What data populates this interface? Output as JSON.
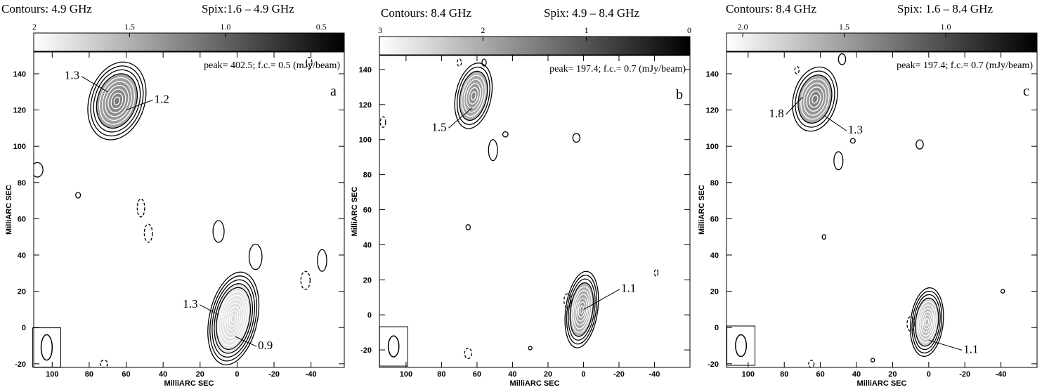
{
  "colors": {
    "background": "#ffffff",
    "ink": "#000000",
    "contour_inner": "#ffffff"
  },
  "chart_data": [
    {
      "type": "contour",
      "panel_letter": "a",
      "title_left": "Contours: 4.9 GHz",
      "title_right": "Spix:1.6 – 4.9 GHz",
      "colorbar": {
        "ticks": [
          "2",
          "1.5",
          "1.0",
          "0.5"
        ],
        "tick_values": [
          2.0,
          1.5,
          1.0,
          0.5
        ],
        "range": [
          2.0,
          0.38
        ]
      },
      "peak_note": "peak= 402.5; f.c.= 0.5 (mJy/beam)",
      "xlabel": "MilliARC SEC",
      "ylabel": "MilliARC SEC",
      "xticks": [
        "100",
        "80",
        "60",
        "40",
        "20",
        "0",
        "-20",
        "-40"
      ],
      "yticks": [
        "-20",
        "0",
        "20",
        "40",
        "60",
        "80",
        "100",
        "120",
        "140"
      ],
      "xlim": [
        110,
        -58
      ],
      "ylim": [
        -22,
        152
      ],
      "components": [
        {
          "x": 65,
          "y": 125,
          "rx": 15,
          "ry": 22,
          "rot": 18,
          "levels": 10,
          "shade": 0.55
        },
        {
          "x": 2,
          "y": 5,
          "rx": 13,
          "ry": 26,
          "rot": 12,
          "levels": 12,
          "shade": 0.15
        }
      ],
      "small_contours": [
        {
          "x": 10,
          "y": 53,
          "rx": 3,
          "ry": 6,
          "dashed": false
        },
        {
          "x": -10,
          "y": 39,
          "rx": 3.5,
          "ry": 7,
          "dashed": false
        },
        {
          "x": -46,
          "y": 37,
          "rx": 2.5,
          "ry": 6,
          "dashed": false
        },
        {
          "x": -37,
          "y": 26,
          "rx": 2.5,
          "ry": 5,
          "dashed": true
        },
        {
          "x": 52,
          "y": 66,
          "rx": 2,
          "ry": 5,
          "dashed": true
        },
        {
          "x": 48,
          "y": 52,
          "rx": 2.2,
          "ry": 5,
          "dashed": true
        },
        {
          "x": 86,
          "y": 73,
          "rx": 1.3,
          "ry": 1.6,
          "dashed": false
        },
        {
          "x": 108,
          "y": 87,
          "rx": 3,
          "ry": 4,
          "dashed": false
        },
        {
          "x": -39,
          "y": 146,
          "rx": 1.5,
          "ry": 3,
          "dashed": true
        },
        {
          "x": 72,
          "y": -20,
          "rx": 2,
          "ry": 2,
          "dashed": true
        }
      ],
      "labels": [
        {
          "text": "1.3",
          "x": 88,
          "y": 137,
          "to_x": 70,
          "to_y": 130
        },
        {
          "text": "1.2",
          "x": 44,
          "y": 124,
          "to_x": 60,
          "to_y": 120
        },
        {
          "text": "1.3",
          "x": 24,
          "y": 11,
          "to_x": 10,
          "to_y": 7
        },
        {
          "text": "0.9",
          "x": -12,
          "y": -12,
          "to_x": 1,
          "to_y": -5
        }
      ],
      "beam": {
        "x": 103,
        "y": -11,
        "rx": 3,
        "ry": 7
      }
    },
    {
      "type": "contour",
      "panel_letter": "b",
      "title_left": "Contours: 8.4 GHz",
      "title_right": "Spix: 4.9 – 8.4 GHz",
      "colorbar": {
        "ticks": [
          "3",
          "2",
          "1",
          "0"
        ],
        "tick_values": [
          3,
          2,
          1,
          0
        ],
        "range": [
          3.0,
          0.0
        ]
      },
      "peak_note": "peak= 197.4; f.c.= 0.7 (mJy/beam)",
      "xlabel": "MilliARC SEC",
      "ylabel": "MilliARC SEC",
      "xticks": [
        "100",
        "80",
        "60",
        "40",
        "20",
        "0",
        "-20",
        "-40"
      ],
      "yticks": [
        "-20",
        "0",
        "20",
        "40",
        "60",
        "80",
        "100",
        "120",
        "140"
      ],
      "xlim": [
        115,
        -60
      ],
      "ylim": [
        -30,
        148
      ],
      "components": [
        {
          "x": 62,
          "y": 125,
          "rx": 10,
          "ry": 19,
          "rot": 12,
          "levels": 8,
          "shade": 0.5
        },
        {
          "x": 1,
          "y": 3,
          "rx": 9,
          "ry": 22,
          "rot": 8,
          "levels": 10,
          "shade": 0.45
        }
      ],
      "small_contours": [
        {
          "x": 51,
          "y": 94,
          "rx": 2.5,
          "ry": 6,
          "dashed": false
        },
        {
          "x": 44,
          "y": 103,
          "rx": 1.5,
          "ry": 1.5,
          "dashed": false
        },
        {
          "x": 4,
          "y": 101,
          "rx": 2,
          "ry": 2.5,
          "dashed": false
        },
        {
          "x": 70,
          "y": 144,
          "rx": 1.2,
          "ry": 2,
          "dashed": true
        },
        {
          "x": 56,
          "y": 144,
          "rx": 1.2,
          "ry": 2,
          "dashed": false
        },
        {
          "x": 113,
          "y": 110,
          "rx": 1.5,
          "ry": 3,
          "dashed": true
        },
        {
          "x": 65,
          "y": 50,
          "rx": 1.2,
          "ry": 1.5,
          "dashed": false
        },
        {
          "x": 9,
          "y": 8,
          "rx": 2,
          "ry": 4,
          "dashed": true
        },
        {
          "x": 65,
          "y": -22,
          "rx": 2,
          "ry": 3,
          "dashed": true
        },
        {
          "x": 30,
          "y": -19,
          "rx": 1,
          "ry": 1,
          "dashed": false
        },
        {
          "x": -41,
          "y": 24,
          "rx": 1,
          "ry": 2,
          "dashed": true
        }
      ],
      "labels": [
        {
          "text": "1.5",
          "x": 80,
          "y": 105,
          "to_x": 63,
          "to_y": 118
        },
        {
          "text": "1.1",
          "x": -22,
          "y": 13,
          "to_x": 0,
          "to_y": 3
        }
      ],
      "beam": {
        "x": 107,
        "y": -18,
        "rx": 3,
        "ry": 6
      }
    },
    {
      "type": "contour",
      "panel_letter": "c",
      "title_left": "Contours: 8.4 GHz",
      "title_right": "Spix: 1.6 – 8.4 GHz",
      "colorbar": {
        "ticks": [
          "2.0",
          "1.5",
          "1.0"
        ],
        "tick_values": [
          2.0,
          1.5,
          1.0
        ],
        "range": [
          2.08,
          0.55
        ]
      },
      "peak_note": "peak= 197.4; f.c.= 0.7 (mJy/beam)",
      "xlabel": "MilliARC SEC",
      "ylabel": "MilliARC SEC",
      "xticks": [
        "100",
        "80",
        "60",
        "40",
        "20",
        "0",
        "-20",
        "-40"
      ],
      "yticks": [
        "-20",
        "0",
        "20",
        "40",
        "60",
        "80",
        "100",
        "120",
        "140"
      ],
      "xlim": [
        112,
        -60
      ],
      "ylim": [
        -22,
        152
      ],
      "components": [
        {
          "x": 63,
          "y": 126,
          "rx": 12,
          "ry": 18,
          "rot": 14,
          "levels": 8,
          "shade": 0.55
        },
        {
          "x": 1,
          "y": 3,
          "rx": 9,
          "ry": 19,
          "rot": 6,
          "levels": 10,
          "shade": 0.3
        }
      ],
      "small_contours": [
        {
          "x": 50,
          "y": 92,
          "rx": 2.5,
          "ry": 5,
          "dashed": false
        },
        {
          "x": 42,
          "y": 103,
          "rx": 1.3,
          "ry": 1.3,
          "dashed": false
        },
        {
          "x": 5,
          "y": 101,
          "rx": 2,
          "ry": 2.5,
          "dashed": false
        },
        {
          "x": 48,
          "y": 148,
          "rx": 2,
          "ry": 3,
          "dashed": false
        },
        {
          "x": 73,
          "y": 142,
          "rx": 1.2,
          "ry": 2,
          "dashed": true
        },
        {
          "x": 58,
          "y": 50,
          "rx": 1,
          "ry": 1.3,
          "dashed": false
        },
        {
          "x": 10,
          "y": 2,
          "rx": 2,
          "ry": 4,
          "dashed": true
        },
        {
          "x": 31,
          "y": -18,
          "rx": 1,
          "ry": 1,
          "dashed": false
        },
        {
          "x": -41,
          "y": 20,
          "rx": 1,
          "ry": 1,
          "dashed": false
        },
        {
          "x": 65,
          "y": -20,
          "rx": 1.5,
          "ry": 2,
          "dashed": true
        }
      ],
      "labels": [
        {
          "text": "1.8",
          "x": 83,
          "y": 116,
          "to_x": 70,
          "to_y": 127
        },
        {
          "text": "1.3",
          "x": 44,
          "y": 107,
          "to_x": 58,
          "to_y": 117
        },
        {
          "text": "1.1",
          "x": -20,
          "y": -14,
          "to_x": 0,
          "to_y": -7
        }
      ],
      "beam": {
        "x": 104,
        "y": -10,
        "rx": 3,
        "ry": 6
      }
    }
  ]
}
